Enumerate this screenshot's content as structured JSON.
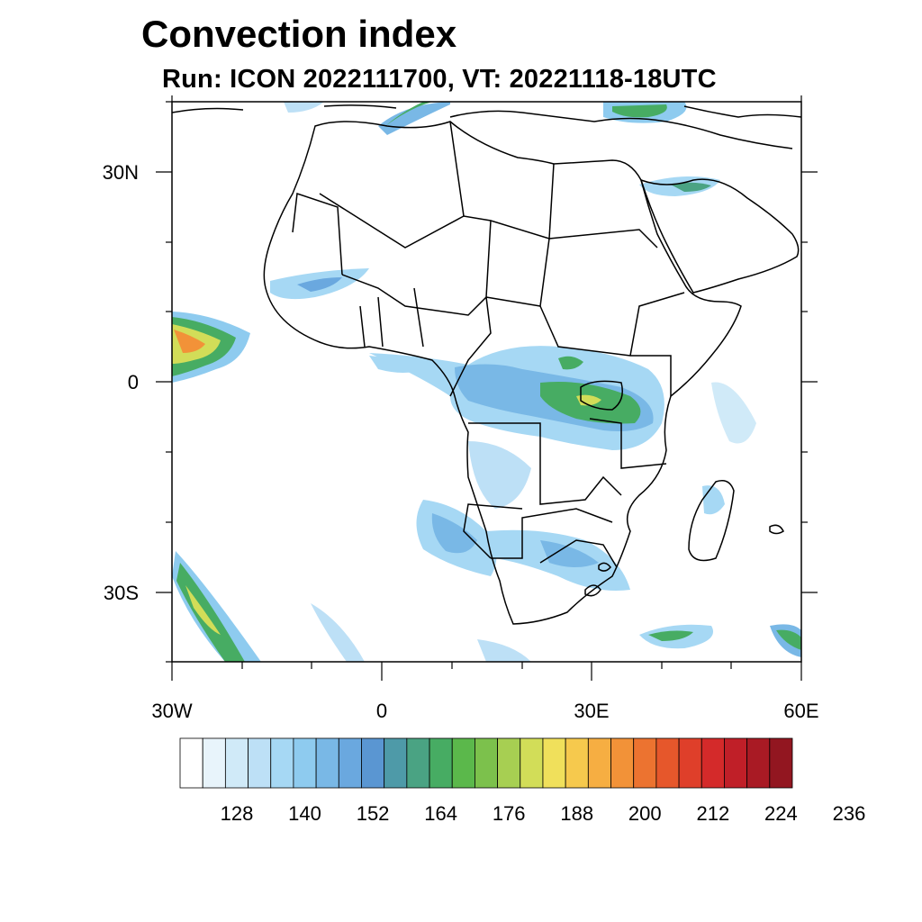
{
  "title": "Convection index",
  "subtitle": "Run: ICON 2022111700,  VT: 20221118-18UTC",
  "axes": {
    "lat_labels": [
      "30N",
      "0",
      "30S"
    ],
    "lon_labels": [
      "30W",
      "0",
      "30E",
      "60E"
    ]
  },
  "colorbar": {
    "labels": [
      "128",
      "140",
      "152",
      "164",
      "176",
      "188",
      "200",
      "212",
      "224",
      "236"
    ],
    "colors": [
      "#ffffff",
      "#e8f4fb",
      "#d0eaf8",
      "#bde0f6",
      "#a6d8f4",
      "#8ecbef",
      "#79b8e6",
      "#6aa8df",
      "#5a96d2",
      "#4e9aa8",
      "#4aa383",
      "#47ac63",
      "#5bb84b",
      "#7cc14c",
      "#a7cf52",
      "#d2dd58",
      "#f0e05b",
      "#f6c94d",
      "#f6ae42",
      "#f29238",
      "#ec7330",
      "#e6572b",
      "#df3f2a",
      "#d42a2a",
      "#c01f28",
      "#a91a24",
      "#921620"
    ]
  }
}
